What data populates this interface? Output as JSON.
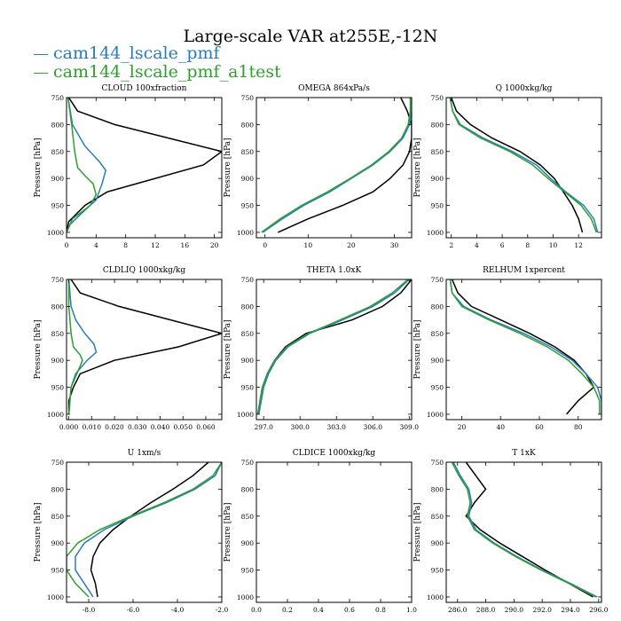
{
  "figure": {
    "title": "Large-scale VAR at255E,-12N",
    "legend": [
      {
        "label": "cam144_lscale_pmf",
        "color": "#2b7bb9"
      },
      {
        "label": "cam144_lscale_pmf_a1test",
        "color": "#2ca02c"
      }
    ],
    "ref_color": "#000000"
  },
  "chart_data": [
    {
      "type": "line",
      "title": "CLOUD  100xfraction",
      "ylabel": "Pressure [hPa]",
      "xlim": [
        0,
        21
      ],
      "ylim": [
        1010,
        750
      ],
      "xticks": [
        0,
        4,
        8,
        12,
        16,
        20
      ],
      "xtick_labels": [
        "0",
        "4",
        "8",
        "12",
        "16",
        "20"
      ],
      "yticks": [
        750,
        800,
        850,
        900,
        950,
        1000
      ],
      "ytick_labels": [
        "750",
        "800",
        "850",
        "900",
        "950",
        "1000"
      ],
      "series": [
        {
          "role": "reference",
          "y": [
            750,
            775,
            800,
            850,
            875,
            925,
            950,
            980,
            1000
          ],
          "x": [
            0.3,
            1.5,
            6.5,
            21,
            18.5,
            5.5,
            2.5,
            0.3,
            0
          ]
        },
        {
          "name": "cam144_lscale_pmf",
          "y": [
            750,
            800,
            840,
            870,
            885,
            910,
            940,
            965,
            985,
            1000
          ],
          "x": [
            0.2,
            0.8,
            2.5,
            4.5,
            5.3,
            4.8,
            4,
            2,
            0.5,
            0
          ]
        },
        {
          "name": "cam144_lscale_pmf_a1test",
          "y": [
            750,
            800,
            850,
            880,
            895,
            910,
            930,
            950,
            975,
            1000
          ],
          "x": [
            0.2,
            0.7,
            1.1,
            1.5,
            2.5,
            3.6,
            4,
            3.2,
            0.8,
            0
          ]
        }
      ]
    },
    {
      "type": "line",
      "title": "OMEGA  864xPa/s",
      "ylabel": "Pressure [hPa]",
      "xlim": [
        -2,
        34
      ],
      "ylim": [
        1010,
        750
      ],
      "xticks": [
        0,
        10,
        20,
        30
      ],
      "xtick_labels": [
        "0",
        "10",
        "20",
        "30"
      ],
      "yticks": [
        750,
        800,
        850,
        900,
        950,
        1000
      ],
      "ytick_labels": [
        "750",
        "800",
        "850",
        "900",
        "950",
        "1000"
      ],
      "series": [
        {
          "role": "reference",
          "y": [
            750,
            775,
            800,
            825,
            850,
            875,
            900,
            925,
            950,
            975,
            1000
          ],
          "x": [
            31.5,
            33,
            34,
            34,
            33.5,
            32,
            29,
            25,
            18,
            10,
            3
          ]
        },
        {
          "name": "cam144_lscale_pmf",
          "y": [
            750,
            775,
            800,
            825,
            850,
            875,
            900,
            925,
            950,
            975,
            1000
          ],
          "x": [
            34,
            34,
            33.5,
            32,
            29,
            25,
            20,
            15,
            9,
            4,
            -0.5
          ]
        },
        {
          "name": "cam144_lscale_pmf_a1test",
          "y": [
            750,
            775,
            800,
            825,
            850,
            875,
            900,
            925,
            950,
            975,
            1000
          ],
          "x": [
            33.7,
            33.7,
            33.2,
            31.7,
            28.7,
            24.7,
            19.7,
            14.5,
            8.5,
            3.5,
            -0.8
          ]
        }
      ]
    },
    {
      "type": "line",
      "title": "Q  1000xkg/kg",
      "ylabel": "Pressure [hPa]",
      "xlim": [
        1.6,
        13.8
      ],
      "ylim": [
        1010,
        750
      ],
      "xticks": [
        2,
        4,
        6,
        8,
        10,
        12
      ],
      "xtick_labels": [
        "2",
        "4",
        "6",
        "8",
        "10",
        "12"
      ],
      "yticks": [
        750,
        800,
        850,
        900,
        950,
        1000
      ],
      "ytick_labels": [
        "750",
        "800",
        "850",
        "900",
        "950",
        "1000"
      ],
      "series": [
        {
          "role": "reference",
          "y": [
            750,
            775,
            800,
            825,
            850,
            875,
            900,
            925,
            950,
            975,
            1000
          ],
          "x": [
            2,
            2.4,
            3.5,
            5.2,
            7.4,
            9,
            10.1,
            10.8,
            11.5,
            12,
            12.3
          ]
        },
        {
          "name": "cam144_lscale_pmf",
          "y": [
            750,
            775,
            800,
            825,
            850,
            875,
            900,
            925,
            950,
            975,
            1000
          ],
          "x": [
            1.9,
            2.1,
            2.7,
            4.5,
            6.8,
            8.7,
            9.8,
            11,
            12.4,
            13.2,
            13.5
          ]
        },
        {
          "name": "cam144_lscale_pmf_a1test",
          "y": [
            750,
            775,
            800,
            825,
            850,
            875,
            900,
            925,
            950,
            975,
            1000
          ],
          "x": [
            1.9,
            2.1,
            2.6,
            4.3,
            6.6,
            8.4,
            9.6,
            10.9,
            12.2,
            13,
            13.4
          ]
        }
      ]
    },
    {
      "type": "line",
      "title": "CLDLIQ  1000xkg/kg",
      "ylabel": "Pressure [hPa]",
      "xlim": [
        -0.001,
        0.067
      ],
      "ylim": [
        1010,
        750
      ],
      "xticks": [
        0,
        0.01,
        0.02,
        0.03,
        0.04,
        0.05,
        0.06
      ],
      "xtick_labels": [
        "0.000",
        "0.010",
        "0.020",
        "0.030",
        "0.040",
        "0.050",
        "0.060"
      ],
      "yticks": [
        750,
        800,
        850,
        900,
        950,
        1000
      ],
      "ytick_labels": [
        "750",
        "800",
        "850",
        "900",
        "950",
        "1000"
      ],
      "series": [
        {
          "role": "reference",
          "y": [
            750,
            775,
            800,
            850,
            875,
            900,
            925,
            950,
            975,
            1000
          ],
          "x": [
            0.001,
            0.005,
            0.022,
            0.067,
            0.048,
            0.02,
            0.005,
            0.002,
            0,
            0
          ]
        },
        {
          "name": "cam144_lscale_pmf",
          "y": [
            750,
            800,
            825,
            850,
            870,
            885,
            900,
            925,
            950,
            1000
          ],
          "x": [
            0,
            0.001,
            0.003,
            0.007,
            0.011,
            0.012,
            0.008,
            0.003,
            0.001,
            0
          ]
        },
        {
          "name": "cam144_lscale_pmf_a1test",
          "y": [
            750,
            800,
            850,
            875,
            890,
            900,
            920,
            950,
            1000
          ],
          "x": [
            0,
            0,
            0.001,
            0.002,
            0.005,
            0.006,
            0.004,
            0.001,
            0
          ]
        }
      ]
    },
    {
      "type": "line",
      "title": "THETA  1.0xK",
      "ylabel": "Pressure [hPa]",
      "xlim": [
        296.4,
        309.2
      ],
      "ylim": [
        1010,
        750
      ],
      "xticks": [
        297,
        300,
        303,
        306,
        309
      ],
      "xtick_labels": [
        "297.0",
        "300.0",
        "303.0",
        "306.0",
        "309.0"
      ],
      "yticks": [
        750,
        800,
        850,
        900,
        950,
        1000
      ],
      "ytick_labels": [
        "750",
        "800",
        "850",
        "900",
        "950",
        "1000"
      ],
      "series": [
        {
          "role": "reference",
          "y": [
            750,
            775,
            800,
            825,
            850,
            875,
            900,
            925,
            950,
            975,
            1000
          ],
          "x": [
            309.2,
            308.3,
            306.8,
            304.3,
            300.5,
            298.8,
            297.9,
            297.3,
            296.9,
            296.7,
            296.6
          ]
        },
        {
          "name": "cam144_lscale_pmf",
          "y": [
            750,
            775,
            800,
            825,
            850,
            875,
            900,
            925,
            950,
            975,
            1000
          ],
          "x": [
            309,
            307.8,
            306,
            303.5,
            300.8,
            299,
            298,
            297.4,
            297,
            296.8,
            296.6
          ]
        },
        {
          "name": "cam144_lscale_pmf_a1test",
          "y": [
            750,
            775,
            800,
            825,
            850,
            875,
            900,
            925,
            950,
            975,
            1000
          ],
          "x": [
            308.9,
            307.6,
            305.8,
            303.3,
            300.7,
            298.9,
            297.9,
            297.3,
            296.9,
            296.7,
            296.5
          ]
        }
      ]
    },
    {
      "type": "line",
      "title": "RELHUM  1xpercent",
      "ylabel": "Pressure [hPa]",
      "xlim": [
        12,
        92
      ],
      "ylim": [
        1010,
        750
      ],
      "xticks": [
        20,
        40,
        60,
        80
      ],
      "xtick_labels": [
        "20",
        "40",
        "60",
        "80"
      ],
      "yticks": [
        750,
        800,
        850,
        900,
        950,
        1000
      ],
      "ytick_labels": [
        "750",
        "800",
        "850",
        "900",
        "950",
        "1000"
      ],
      "series": [
        {
          "role": "reference",
          "y": [
            750,
            775,
            800,
            825,
            850,
            875,
            900,
            925,
            950,
            975,
            1000
          ],
          "x": [
            15,
            18,
            25,
            40,
            55,
            68,
            78,
            84,
            88,
            80,
            74
          ]
        },
        {
          "name": "cam144_lscale_pmf",
          "y": [
            750,
            775,
            800,
            825,
            850,
            875,
            900,
            925,
            950,
            975,
            1000
          ],
          "x": [
            14,
            15,
            21,
            35,
            52,
            66,
            77,
            84,
            90,
            92,
            92
          ]
        },
        {
          "name": "cam144_lscale_pmf_a1test",
          "y": [
            750,
            775,
            800,
            825,
            850,
            875,
            900,
            925,
            950,
            975,
            1000
          ],
          "x": [
            14,
            15,
            20,
            34,
            50,
            64,
            75,
            82,
            88,
            91,
            91
          ]
        }
      ]
    },
    {
      "type": "line",
      "title": "U  1xm/s",
      "ylabel": "Pressure [hPa]",
      "xlim": [
        -9,
        -2
      ],
      "ylim": [
        1010,
        750
      ],
      "xticks": [
        -8,
        -6,
        -4,
        -2
      ],
      "xtick_labels": [
        "-8.0",
        "-6.0",
        "-4.0",
        "-2.0"
      ],
      "yticks": [
        750,
        800,
        850,
        900,
        950,
        1000
      ],
      "ytick_labels": [
        "750",
        "800",
        "850",
        "900",
        "950",
        "1000"
      ],
      "series": [
        {
          "role": "reference",
          "y": [
            750,
            775,
            800,
            825,
            850,
            875,
            900,
            925,
            950,
            975,
            1000
          ],
          "x": [
            -2.6,
            -3.3,
            -4.2,
            -5.2,
            -6.1,
            -6.9,
            -7.5,
            -7.8,
            -7.9,
            -7.7,
            -7.6
          ]
        },
        {
          "name": "cam144_lscale_pmf",
          "y": [
            750,
            775,
            800,
            825,
            850,
            875,
            900,
            925,
            950,
            975,
            1000
          ],
          "x": [
            -2.0,
            -2.3,
            -3.2,
            -4.5,
            -6.0,
            -7.3,
            -8.2,
            -8.6,
            -8.6,
            -8.2,
            -7.8
          ]
        },
        {
          "name": "cam144_lscale_pmf_a1test",
          "y": [
            750,
            775,
            800,
            825,
            850,
            875,
            900,
            925,
            950,
            975,
            1000
          ],
          "x": [
            -2.0,
            -2.4,
            -3.3,
            -4.6,
            -6.1,
            -7.5,
            -8.5,
            -9.0,
            -9.0,
            -8.6,
            -8.0
          ]
        }
      ]
    },
    {
      "type": "line",
      "title": "CLDICE  1000xkg/kg",
      "ylabel": "Pressure [hPa]",
      "xlim": [
        0,
        1
      ],
      "ylim": [
        1010,
        750
      ],
      "xticks": [
        0,
        0.2,
        0.4,
        0.6,
        0.8,
        1.0
      ],
      "xtick_labels": [
        "0.0",
        "0.2",
        "0.4",
        "0.6",
        "0.8",
        "1.0"
      ],
      "yticks": [
        750,
        800,
        850,
        900,
        950,
        1000
      ],
      "ytick_labels": [
        "750",
        "800",
        "850",
        "900",
        "950",
        "1000"
      ],
      "series": []
    },
    {
      "type": "line",
      "title": "T  1xK",
      "ylabel": "Pressure [hPa]",
      "xlim": [
        285.2,
        296.2
      ],
      "ylim": [
        1010,
        750
      ],
      "xticks": [
        286,
        288,
        290,
        292,
        294,
        296
      ],
      "xtick_labels": [
        "286.0",
        "288.0",
        "290.0",
        "292.0",
        "294.0",
        "296.0"
      ],
      "yticks": [
        750,
        800,
        850,
        900,
        950,
        1000
      ],
      "ytick_labels": [
        "750",
        "800",
        "850",
        "900",
        "950",
        "1000"
      ],
      "series": [
        {
          "role": "reference",
          "y": [
            750,
            775,
            800,
            825,
            850,
            875,
            900,
            925,
            950,
            975,
            1000
          ],
          "x": [
            286.6,
            287.3,
            288.0,
            287.2,
            286.6,
            287.6,
            289.0,
            290.6,
            292.2,
            293.9,
            295.6
          ]
        },
        {
          "name": "cam144_lscale_pmf",
          "y": [
            750,
            775,
            800,
            825,
            850,
            875,
            900,
            925,
            950,
            975,
            1000
          ],
          "x": [
            285.7,
            286.2,
            286.8,
            287.0,
            286.8,
            287.3,
            288.6,
            290.2,
            292.0,
            294.0,
            295.9
          ]
        },
        {
          "name": "cam144_lscale_pmf_a1test",
          "y": [
            750,
            775,
            800,
            825,
            850,
            875,
            900,
            925,
            950,
            975,
            1000
          ],
          "x": [
            285.6,
            286.1,
            286.7,
            286.9,
            286.7,
            287.2,
            288.5,
            290.1,
            291.9,
            293.9,
            295.8
          ]
        }
      ]
    }
  ]
}
